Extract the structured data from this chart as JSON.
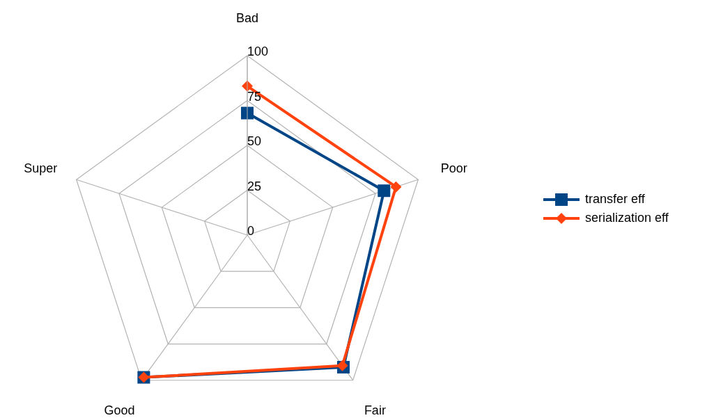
{
  "chart_data": {
    "type": "radar",
    "categories": [
      "Bad",
      "Poor",
      "Fair",
      "Good",
      "Super"
    ],
    "ylim": [
      0,
      100
    ],
    "yticks": [
      0,
      25,
      50,
      75,
      100
    ],
    "grid": true,
    "legend": "right",
    "line_style": "solid",
    "series": [
      {
        "name": "transfer eff",
        "color": "#004586",
        "marker": "square",
        "values": [
          68,
          80,
          91,
          98,
          null
        ]
      },
      {
        "name": "serialization eff",
        "color": "#ff420e",
        "marker": "diamond",
        "values": [
          83,
          87,
          90,
          98,
          null
        ]
      }
    ]
  }
}
